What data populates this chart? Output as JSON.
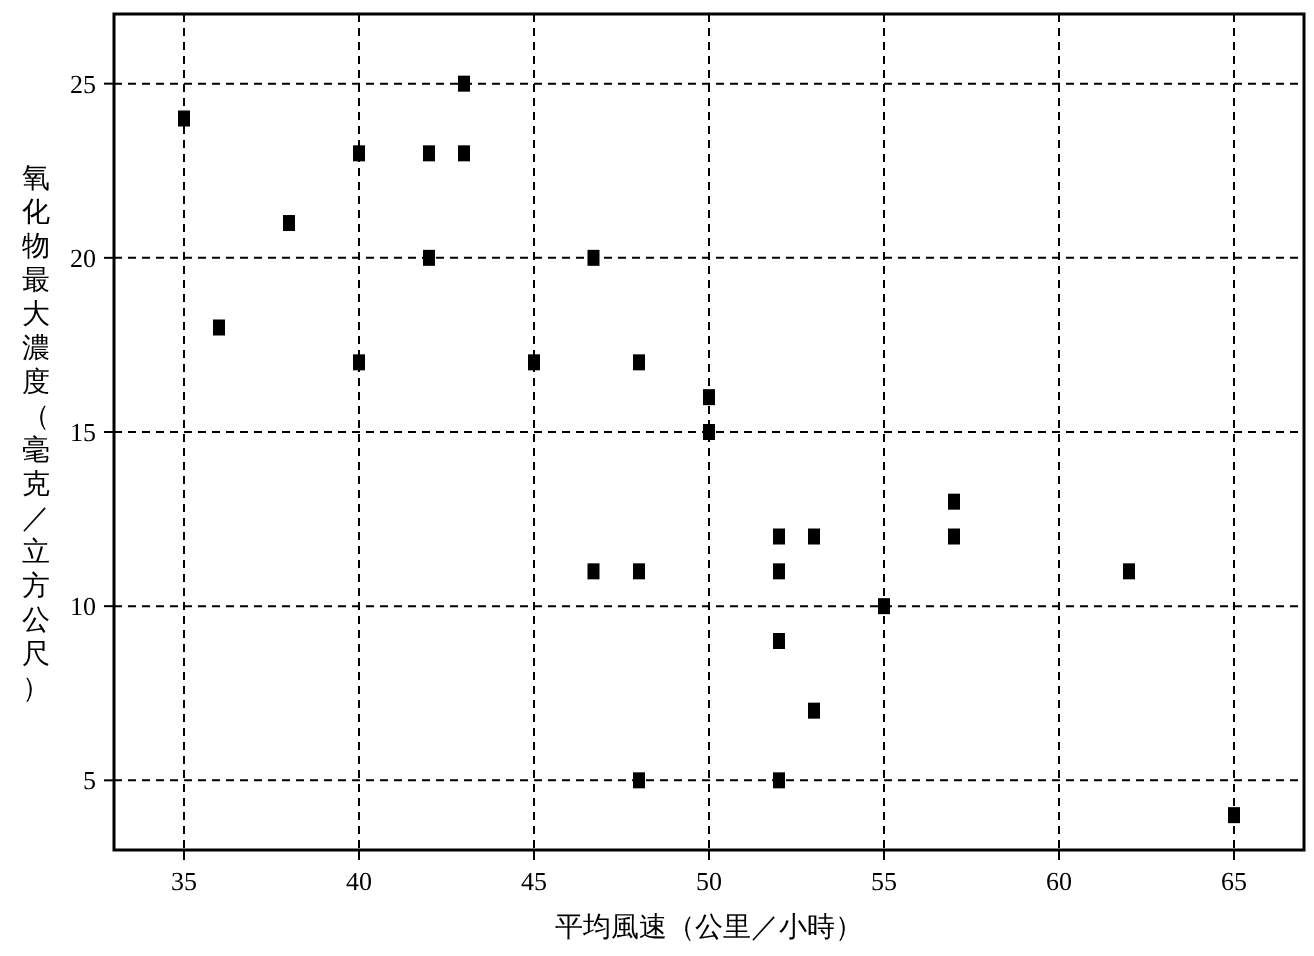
{
  "chart_data": {
    "type": "scatter",
    "xlabel": "平均風速（公里／小時）",
    "ylabel": "氧化物最大濃度（毫克／立方公尺）",
    "x": [
      35,
      36,
      38,
      40,
      40,
      42,
      42,
      43,
      43,
      45,
      46.7,
      46.7,
      48,
      48,
      48,
      50,
      50,
      52,
      52,
      52,
      52,
      53,
      53,
      55,
      57,
      57,
      62,
      65
    ],
    "values": [
      24,
      18,
      21,
      23,
      17,
      23,
      20,
      25,
      23,
      17,
      20,
      11,
      17,
      11,
      5,
      16,
      15,
      12,
      11,
      9,
      5,
      12,
      7,
      10,
      13,
      12,
      11,
      4
    ],
    "color": "#000000",
    "marker": "square",
    "xlim": [
      33,
      67
    ],
    "ylim": [
      3,
      27
    ],
    "xticks": [
      35,
      40,
      45,
      50,
      55,
      60,
      65
    ],
    "yticks": [
      5,
      10,
      15,
      20,
      25
    ],
    "grid": true
  }
}
